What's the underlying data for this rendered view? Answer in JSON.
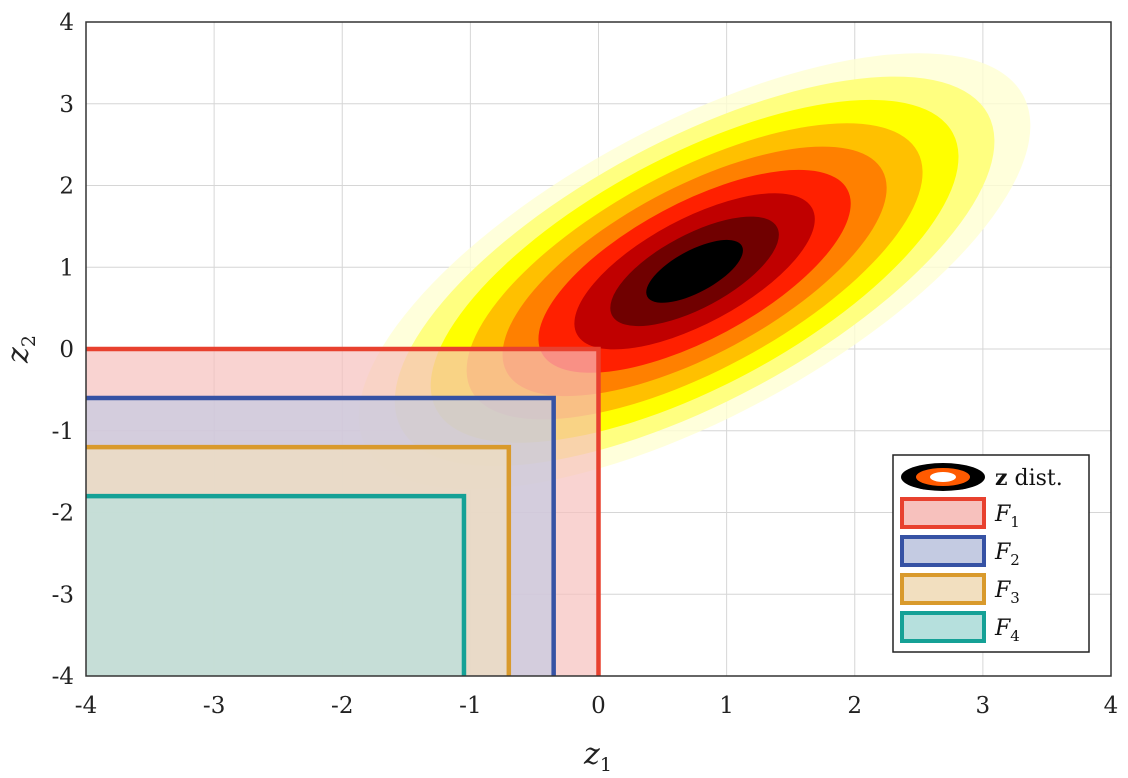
{
  "chart_data": {
    "type": "contour",
    "xlabel": "z₁",
    "ylabel": "z₂",
    "xlim": [
      -4,
      4
    ],
    "ylim": [
      -4,
      4
    ],
    "xticks": [
      -4,
      -3,
      -2,
      -1,
      0,
      1,
      2,
      3,
      4
    ],
    "yticks": [
      -4,
      -3,
      -2,
      -1,
      0,
      1,
      2,
      3,
      4
    ],
    "grid": true,
    "legend_position": "bottom-right",
    "distribution": {
      "name": "z dist.",
      "mean": [
        0.75,
        0.95
      ],
      "covariance": [
        [
          1.0,
          0.3
        ],
        [
          0.3,
          0.6
        ]
      ],
      "colormap": [
        "#ffffd2",
        "#ffff80",
        "#ffff00",
        "#ffc000",
        "#ff8000",
        "#ff2000",
        "#c00000",
        "#700000",
        "#000000"
      ]
    },
    "regions": [
      {
        "name": "F",
        "sub": "1",
        "x": [
          -4,
          0.0
        ],
        "y": [
          -4,
          0.0
        ],
        "stroke": "#e8412f",
        "fill": "#f7c1bd"
      },
      {
        "name": "F",
        "sub": "2",
        "x": [
          -4,
          -0.35
        ],
        "y": [
          -4,
          -0.6
        ],
        "stroke": "#3652a4",
        "fill": "#c4cbe2"
      },
      {
        "name": "F",
        "sub": "3",
        "x": [
          -4,
          -0.7
        ],
        "y": [
          -4,
          -1.2
        ],
        "stroke": "#d99a2c",
        "fill": "#f2dfbf"
      },
      {
        "name": "F",
        "sub": "4",
        "x": [
          -4,
          -1.05
        ],
        "y": [
          -4,
          -1.8
        ],
        "stroke": "#15a196",
        "fill": "#b6e0dd"
      }
    ]
  }
}
